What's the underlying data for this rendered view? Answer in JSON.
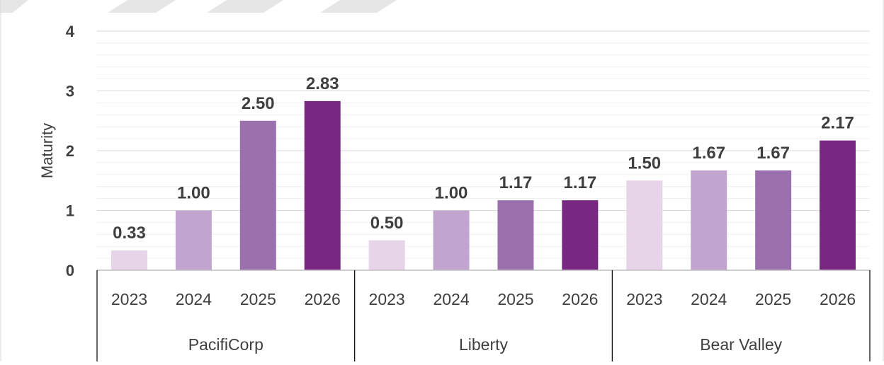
{
  "chart_data": {
    "type": "bar",
    "title": "",
    "xlabel": "",
    "ylabel": "Maturity",
    "ylim": [
      0,
      4
    ],
    "yticks": [
      "0",
      "1",
      "2",
      "3",
      "4"
    ],
    "grid": true,
    "legend": "none",
    "groups": [
      {
        "label": "PacifiCorp",
        "categories": [
          "2023",
          "2024",
          "2025",
          "2026"
        ],
        "values": [
          0.33,
          1.0,
          2.5,
          2.83
        ],
        "value_labels": [
          "0.33",
          "1.00",
          "2.50",
          "2.83"
        ]
      },
      {
        "label": "Liberty",
        "categories": [
          "2023",
          "2024",
          "2025",
          "2026"
        ],
        "values": [
          0.5,
          1.0,
          1.17,
          1.17
        ],
        "value_labels": [
          "0.50",
          "1.00",
          "1.17",
          "1.17"
        ]
      },
      {
        "label": "Bear Valley",
        "categories": [
          "2023",
          "2024",
          "2025",
          "2026"
        ],
        "values": [
          1.5,
          1.67,
          1.67,
          2.17
        ],
        "value_labels": [
          "1.50",
          "1.67",
          "1.67",
          "2.17"
        ]
      }
    ],
    "year_colors": [
      "#e8d4e8",
      "#c1a5cf",
      "#9a70ae",
      "#782882"
    ]
  }
}
